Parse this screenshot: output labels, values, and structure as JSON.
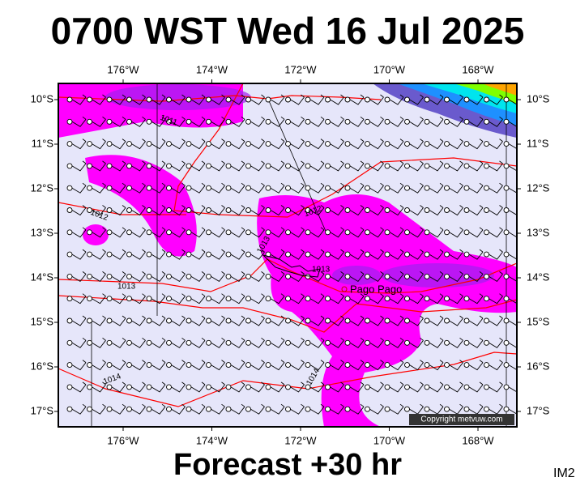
{
  "header": {
    "title": "0700 WST Wed 16 Jul 2025"
  },
  "map": {
    "lon_labels": [
      "176°W",
      "174°W",
      "172°W",
      "170°W",
      "168°W"
    ],
    "lat_labels": [
      "10°S",
      "11°S",
      "12°S",
      "13°S",
      "14°S",
      "15°S",
      "16°S",
      "17°S"
    ],
    "isobar_labels": [
      "1011",
      "1012",
      "1012",
      "1013",
      "1013",
      "1013",
      "1014",
      "1014"
    ],
    "place": "Pago Pago",
    "copyright": "Copyright metvuw.com"
  },
  "footer": {
    "forecast": "Forecast +30 hr",
    "code": "IM2"
  }
}
